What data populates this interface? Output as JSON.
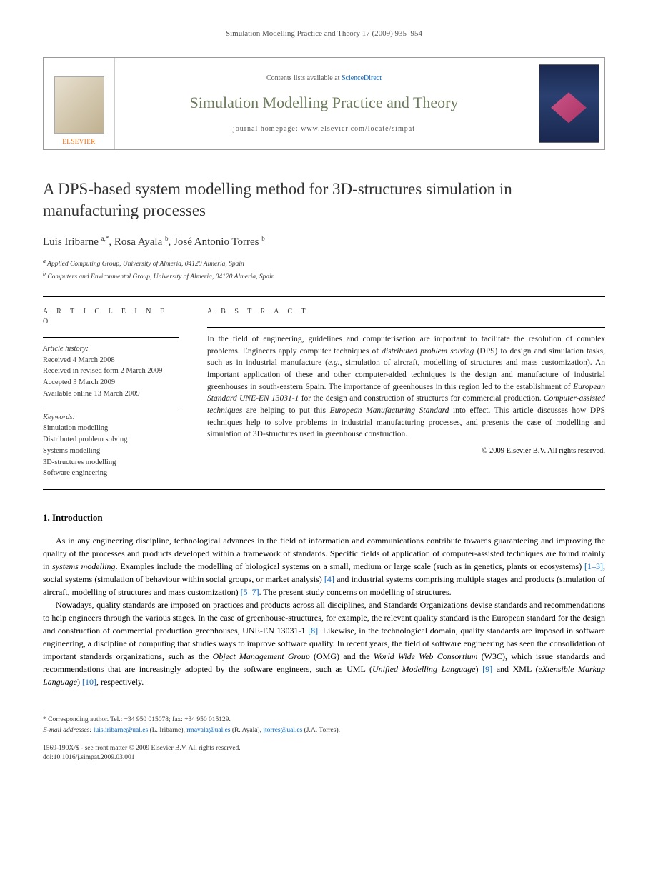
{
  "page_header": "Simulation Modelling Practice and Theory 17 (2009) 935–954",
  "banner": {
    "contents_prefix": "Contents lists available at ",
    "contents_link": "ScienceDirect",
    "journal_name": "Simulation Modelling Practice and Theory",
    "homepage": "journal homepage: www.elsevier.com/locate/simpat",
    "publisher": "ELSEVIER"
  },
  "title": "A DPS-based system modelling method for 3D-structures simulation in manufacturing processes",
  "authors_html": "Luis Iribarne <sup>a,*</sup>, Rosa Ayala <sup>b</sup>, José Antonio Torres <sup>b</sup>",
  "affiliations": {
    "a": "Applied Computing Group, University of Almeria, 04120 Almeria, Spain",
    "b": "Computers and Environmental Group, University of Almeria, 04120 Almeria, Spain"
  },
  "info": {
    "label": "A R T I C L E   I N F O",
    "history_label": "Article history:",
    "history": [
      "Received 4 March 2008",
      "Received in revised form 2 March 2009",
      "Accepted 3 March 2009",
      "Available online 13 March 2009"
    ],
    "keywords_label": "Keywords:",
    "keywords": [
      "Simulation modelling",
      "Distributed problem solving",
      "Systems modelling",
      "3D-structures modelling",
      "Software engineering"
    ]
  },
  "abstract": {
    "label": "A B S T R A C T",
    "text": "In the field of engineering, guidelines and computerisation are important to facilitate the resolution of complex problems. Engineers apply computer techniques of distributed problem solving (DPS) to design and simulation tasks, such as in industrial manufacture (e.g., simulation of aircraft, modelling of structures and mass customization). An important application of these and other computer-aided techniques is the design and manufacture of industrial greenhouses in south-eastern Spain. The importance of greenhouses in this region led to the establishment of European Standard UNE-EN 13031-1 for the design and construction of structures for commercial production. Computer-assisted techniques are helping to put this European Manufacturing Standard into effect. This article discusses how DPS techniques help to solve problems in industrial manufacturing processes, and presents the case of modelling and simulation of 3D-structures used in greenhouse construction.",
    "copyright": "© 2009 Elsevier B.V. All rights reserved."
  },
  "intro": {
    "heading": "1. Introduction",
    "p1": "As in any engineering discipline, technological advances in the field of information and communications contribute towards guaranteeing and improving the quality of the processes and products developed within a framework of standards. Specific fields of application of computer-assisted techniques are found mainly in systems modelling. Examples include the modelling of biological systems on a small, medium or large scale (such as in genetics, plants or ecosystems) [1–3], social systems (simulation of behaviour within social groups, or market analysis) [4] and industrial systems comprising multiple stages and products (simulation of aircraft, modelling of structures and mass customization) [5–7]. The present study concerns on modelling of structures.",
    "p2": "Nowadays, quality standards are imposed on practices and products across all disciplines, and Standards Organizations devise standards and recommendations to help engineers through the various stages. In the case of greenhouse-structures, for example, the relevant quality standard is the European standard for the design and construction of commercial production greenhouses, UNE-EN 13031-1 [8]. Likewise, in the technological domain, quality standards are imposed in software engineering, a discipline of computing that studies ways to improve software quality. In recent years, the field of software engineering has seen the consolidation of important standards organizations, such as the Object Management Group (OMG) and the World Wide Web Consortium (W3C), which issue standards and recommendations that are increasingly adopted by the software engineers, such as UML (Unified Modelling Language) [9] and XML (eXtensible Markup Language) [10], respectively."
  },
  "footnote": {
    "corr": "* Corresponding author. Tel.: +34 950 015078; fax: +34 950 015129.",
    "email_label": "E-mail addresses:",
    "emails": "luis.iribarne@ual.es (L. Iribarne), rmayala@ual.es (R. Ayala), jtorres@ual.es (J.A. Torres)."
  },
  "doi": {
    "line1": "1569-190X/$ - see front matter © 2009 Elsevier B.V. All rights reserved.",
    "line2": "doi:10.1016/j.simpat.2009.03.001"
  },
  "refs": {
    "r1_3": "[1–3]",
    "r4": "[4]",
    "r5_7": "[5–7]",
    "r8": "[8]",
    "r9": "[9]",
    "r10": "[10]"
  }
}
